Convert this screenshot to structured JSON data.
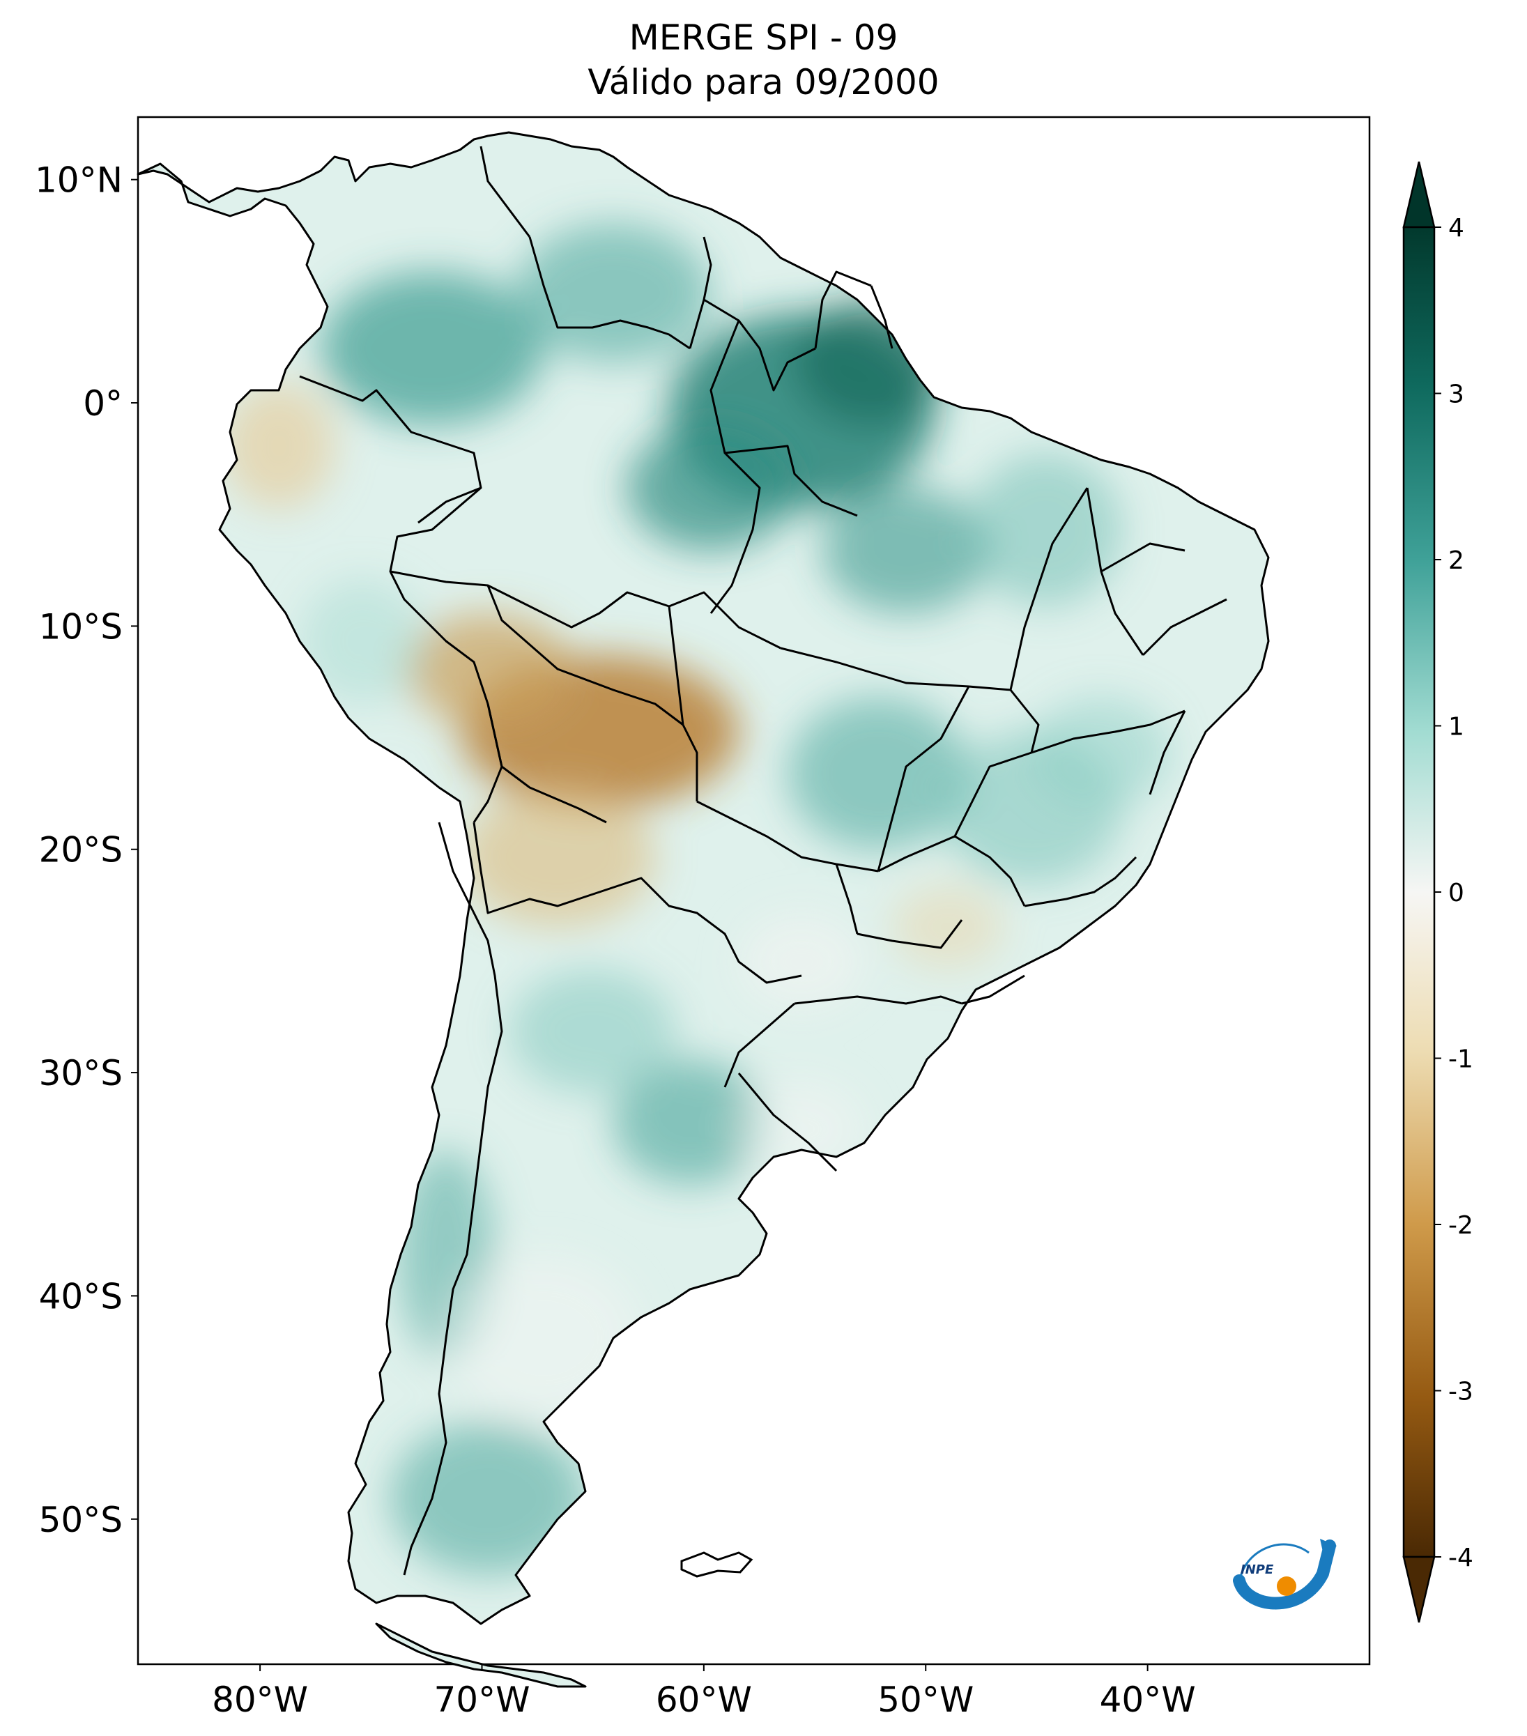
{
  "title": {
    "line1": "MERGE   SPI - 09",
    "line2": "Válido para 09/2000"
  },
  "map": {
    "region": "South America",
    "lat_ticks": [
      "10°N",
      "0°",
      "10°S",
      "20°S",
      "30°S",
      "40°S",
      "50°S"
    ],
    "lon_ticks": [
      "80°W",
      "70°W",
      "60°W",
      "50°W",
      "40°W"
    ],
    "lon_range": [
      -85.5,
      -30.0
    ],
    "lat_range": [
      -56.5,
      12.8
    ]
  },
  "colorbar": {
    "ticks": [
      "4",
      "3",
      "2",
      "1",
      "0",
      "-1",
      "-2",
      "-3",
      "-4"
    ],
    "min": -4,
    "max": 4,
    "colors": {
      "max": "#01352a",
      "high": "#2a8c82",
      "mid_high": "#9fdbd1",
      "zero": "#f6f6f4",
      "mid_low": "#e8d3a0",
      "low": "#b47a2a",
      "min": "#4a2904"
    }
  },
  "logo": {
    "text": "INPE",
    "colors": {
      "arc": "#1a7bbf",
      "dot": "#ef8c00"
    }
  }
}
